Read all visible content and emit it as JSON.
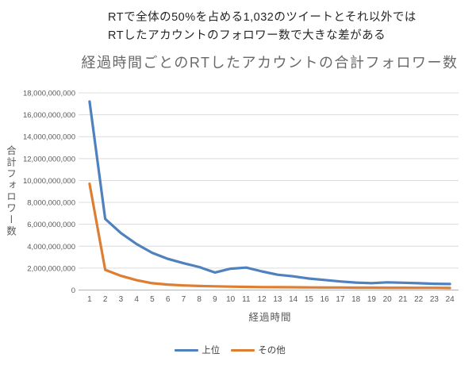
{
  "annotation": {
    "line1": "RTで全体の50%を占める1,032のツイートとそれ以外では",
    "line2": "RTしたアカウントのフォロワー数で大きな差がある"
  },
  "chart_data": {
    "type": "line",
    "title": "経過時間ごとのRTしたアカウントの合計フォロワー数",
    "xlabel": "経過時間",
    "ylabel": "合計フォロワー数",
    "grid": true,
    "legend_position": "bottom",
    "x": [
      1,
      2,
      3,
      4,
      5,
      6,
      7,
      8,
      9,
      10,
      11,
      12,
      13,
      14,
      15,
      16,
      17,
      18,
      19,
      20,
      21,
      22,
      23,
      24
    ],
    "ylim": [
      0,
      18000000000
    ],
    "y_tick_step": 2000000000,
    "y_tick_labels": [
      "0",
      "2,000,000,000",
      "4,000,000,000",
      "6,000,000,000",
      "8,000,000,000",
      "10,000,000,000",
      "12,000,000,000",
      "14,000,000,000",
      "16,000,000,000",
      "18,000,000,000"
    ],
    "series": [
      {
        "name": "上位",
        "color": "#4e81bd",
        "values": [
          17200000000,
          6500000000,
          5200000000,
          4200000000,
          3400000000,
          2850000000,
          2450000000,
          2100000000,
          1600000000,
          1950000000,
          2050000000,
          1700000000,
          1400000000,
          1250000000,
          1050000000,
          920000000,
          780000000,
          680000000,
          630000000,
          700000000,
          670000000,
          620000000,
          570000000,
          550000000
        ]
      },
      {
        "name": "その他",
        "color": "#dd7e32",
        "values": [
          9700000000,
          1850000000,
          1300000000,
          900000000,
          620000000,
          500000000,
          420000000,
          370000000,
          340000000,
          310000000,
          290000000,
          270000000,
          260000000,
          250000000,
          240000000,
          230000000,
          230000000,
          220000000,
          220000000,
          210000000,
          210000000,
          200000000,
          200000000,
          190000000
        ]
      }
    ],
    "colors": {
      "grid": "#dcdcdc",
      "axis": "#b3b3b3",
      "tick_text": "#595959"
    }
  }
}
